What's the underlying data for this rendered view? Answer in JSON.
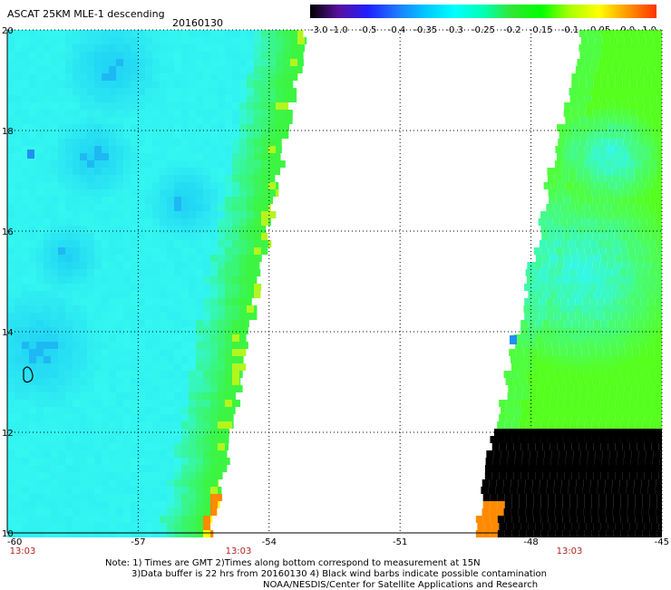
{
  "header": {
    "title": "ASCAT 25KM MLE-1 descending",
    "date": "20160130"
  },
  "colorbar": {
    "labels": [
      "-3.0",
      "-1.0",
      "-0.5",
      "-0.4",
      "-0.35",
      "-0.3",
      "-0.25",
      "-0.2",
      "-0.15",
      "-0.1",
      "-0.05",
      "0.0",
      "1.0"
    ],
    "colors": [
      "#000000",
      "#5a0fa0",
      "#2020ff",
      "#1e78ff",
      "#00c8ff",
      "#00ffff",
      "#00ffb4",
      "#32e632",
      "#00ff00",
      "#aaff00",
      "#ffff00",
      "#ff9600",
      "#ff3200"
    ]
  },
  "colors": {
    "cyan": "#33f7f0",
    "light_blue": "#1ecdf5",
    "blue": "#1f90f0",
    "green": "#3cf542",
    "bright_green": "#55ff1e",
    "yellow_green": "#b4f51e",
    "yellow": "#ffff00",
    "orange": "#ff8a00",
    "grid": "#000000",
    "axis_time": "#b22222"
  },
  "chart_data": {
    "type": "heatmap",
    "title": "ASCAT 25KM MLE-1 descending",
    "date": "20160130",
    "x_ticks": [
      "-60",
      "-57",
      "-54",
      "-51",
      "-48",
      "-45"
    ],
    "y_ticks": [
      "20",
      "18",
      "16",
      "14",
      "12",
      "10"
    ],
    "xlim": [
      -60,
      -45
    ],
    "ylim": [
      10,
      20
    ],
    "grid": "dotted",
    "swath_times": [
      "13:03",
      "13:03",
      "13:03"
    ],
    "swaths": [
      {
        "lon_west_bottom": -60,
        "lon_east_bottom": -53.3,
        "lon_east_top": -52.4,
        "dominant_range": "-0.3 to -0.15"
      },
      {
        "lon_west_bottom": -46.9,
        "lon_west_top": -44.5,
        "lon_east": -45,
        "dominant_range": "-0.25 to 0.0"
      }
    ]
  },
  "footer": {
    "note_line1": "Note: 1) Times are GMT 2)Times along bottom correspond to measurement at 15N",
    "note_line2": "3)Data buffer is 22 hrs from 20160130 4) Black wind barbs indicate possible contamination",
    "credit": "NOAA/NESDIS/Center for Satellite Applications and Research"
  }
}
